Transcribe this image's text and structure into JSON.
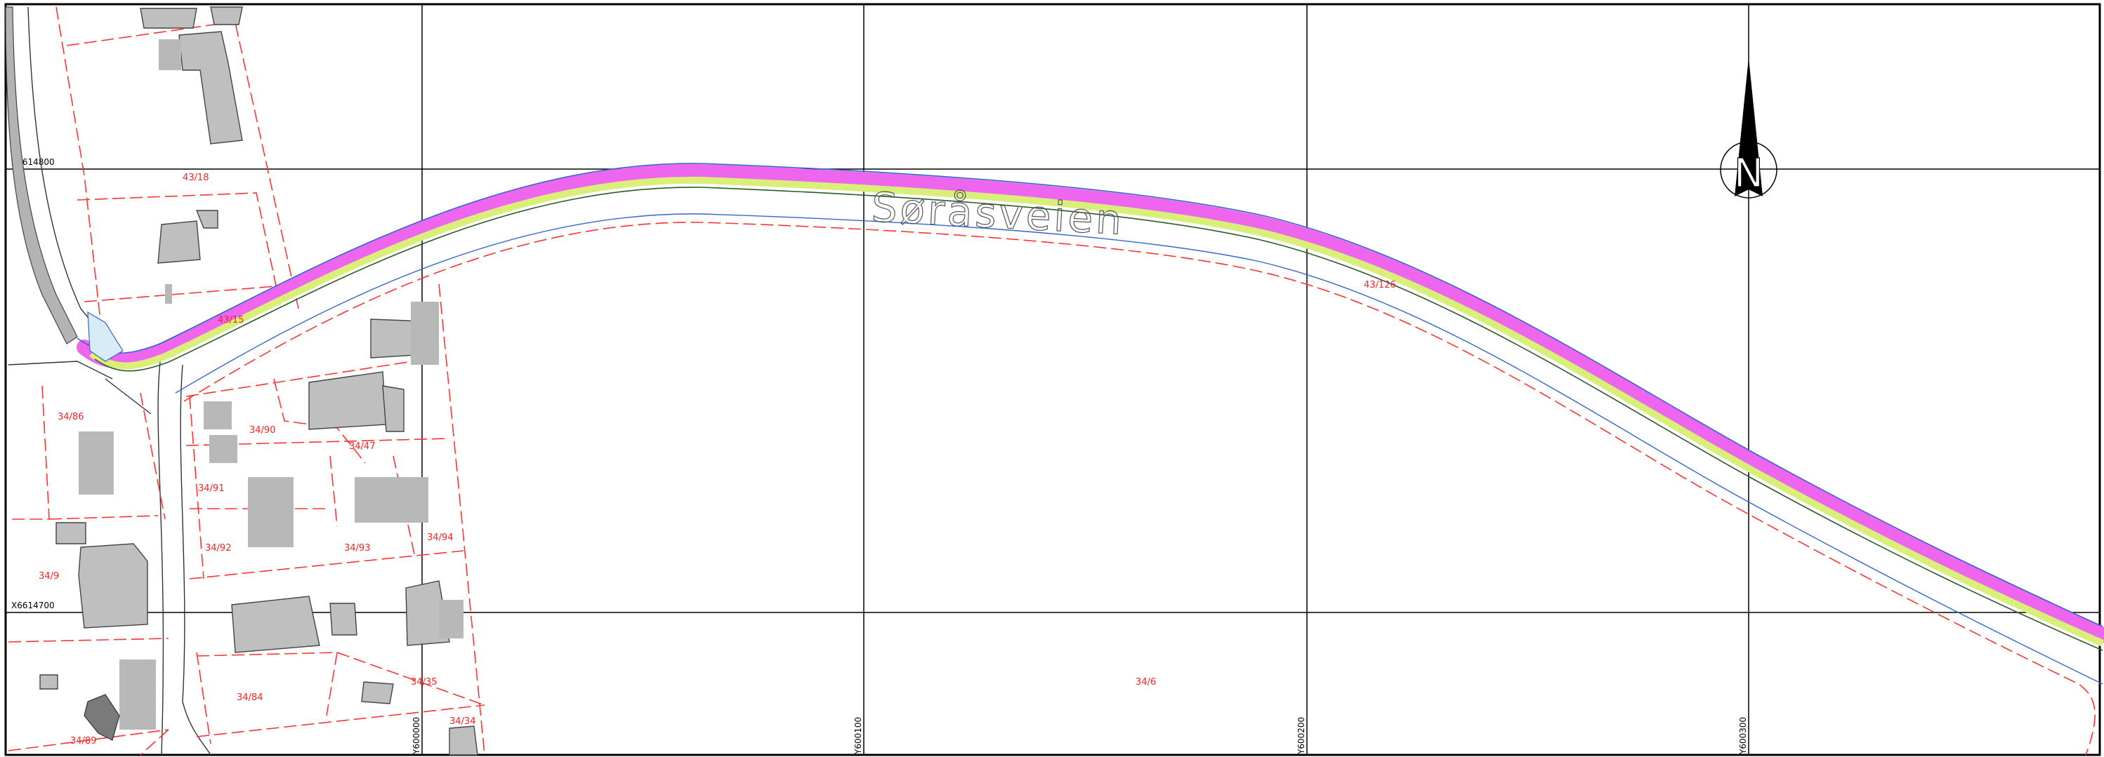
{
  "road_name": "Søråsveien",
  "north_label": "N",
  "grid": {
    "x_labels": [
      "X6614800",
      "X6614700"
    ],
    "y_labels": [
      "Y600000",
      "Y600100",
      "Y600200",
      "Y600300"
    ]
  },
  "parcels": {
    "p43_18": "43/18",
    "p43_15": "43/15",
    "p43_126": "43/126",
    "p34_86": "34/86",
    "p34_90": "34/90",
    "p34_47": "34/47",
    "p34_91": "34/91",
    "p34_92": "34/92",
    "p34_93": "34/93",
    "p34_94": "34/94",
    "p34_9": "34/9",
    "p34_84": "34/84",
    "p34_35": "34/35",
    "p34_89": "34/89",
    "p34_34": "34/34",
    "p34_6": "34/6"
  },
  "colors": {
    "road_plan": "#ee66ee",
    "road_verge": "#d9ef7a",
    "parcel_border": "#ff3333",
    "edge_line": "#3366cc"
  }
}
